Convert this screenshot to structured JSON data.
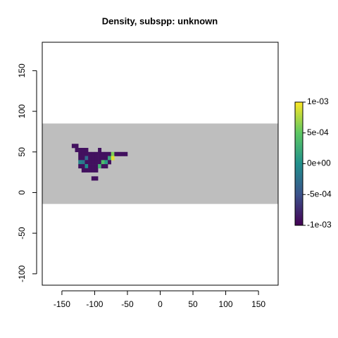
{
  "chart_data": {
    "type": "raster",
    "title": "Density, subspp: unknown",
    "xlim": [
      -180,
      180
    ],
    "ylim": [
      -114,
      185
    ],
    "xticks": [
      -150,
      -100,
      -50,
      0,
      50,
      100,
      150
    ],
    "yticks": [
      -100,
      -50,
      0,
      50,
      100,
      150
    ],
    "band": {
      "ylim": [
        -14,
        85
      ],
      "color": "#bebebe"
    },
    "raster": {
      "x0": -135,
      "y0": 60,
      "dx": 5,
      "dy": 5,
      "rows": [
        [
          -0.0009,
          -0.0009,
          null,
          null,
          null,
          null,
          null,
          null,
          null,
          null,
          null,
          null,
          null,
          null,
          null,
          null,
          null
        ],
        [
          null,
          -0.0009,
          -0.0009,
          -0.0009,
          -0.0009,
          null,
          null,
          null,
          -0.0009,
          null,
          null,
          null,
          null,
          null,
          null,
          null,
          null
        ],
        [
          null,
          null,
          -0.0009,
          -0.0009,
          -0.0009,
          -0.0009,
          -0.0009,
          -0.0009,
          -0.0009,
          -0.0009,
          -0.0009,
          -0.0009,
          0.0006,
          -0.0009,
          -0.0009,
          -0.0009,
          -0.0009
        ],
        [
          null,
          null,
          -0.0009,
          -0.0009,
          -0.0003,
          -0.0009,
          -0.0009,
          -0.0009,
          -0.0009,
          -0.0009,
          -0.0009,
          0.0002,
          0.0009,
          null,
          null,
          null,
          null
        ],
        [
          null,
          null,
          -0.0001,
          -0.0002,
          -0.0009,
          -0.0009,
          -0.0009,
          -0.0009,
          -0.0009,
          0.0004,
          0.0001,
          -0.0009,
          null,
          null,
          null,
          null,
          null
        ],
        [
          null,
          null,
          -0.0009,
          -0.0009,
          0,
          -0.0009,
          -0.0009,
          -0.0009,
          0.0003,
          -0.0009,
          -0.0009,
          null,
          null,
          null,
          null,
          null,
          null
        ],
        [
          null,
          null,
          null,
          -0.0009,
          -0.0009,
          -0.0009,
          -0.0009,
          -0.0009,
          null,
          null,
          null,
          null,
          null,
          null,
          null,
          null,
          null
        ],
        [
          null,
          null,
          null,
          null,
          null,
          null,
          null,
          null,
          null,
          null,
          null,
          null,
          null,
          null,
          null,
          null,
          null
        ],
        [
          null,
          null,
          null,
          null,
          null,
          null,
          -0.0009,
          -0.0009,
          null,
          null,
          null,
          null,
          null,
          null,
          null,
          null,
          null
        ]
      ]
    },
    "zlim": [
      -0.001,
      0.001
    ],
    "colors": [
      "#440154",
      "#3b528b",
      "#21908c",
      "#5dc863",
      "#fde725"
    ],
    "zticks": [
      {
        "value": 0.001,
        "label": "1e-03"
      },
      {
        "value": 0.0005,
        "label": "5e-04"
      },
      {
        "value": 0,
        "label": "0e+00"
      },
      {
        "value": -0.0005,
        "label": "-5e-04"
      },
      {
        "value": -0.001,
        "label": "-1e-03"
      }
    ]
  }
}
